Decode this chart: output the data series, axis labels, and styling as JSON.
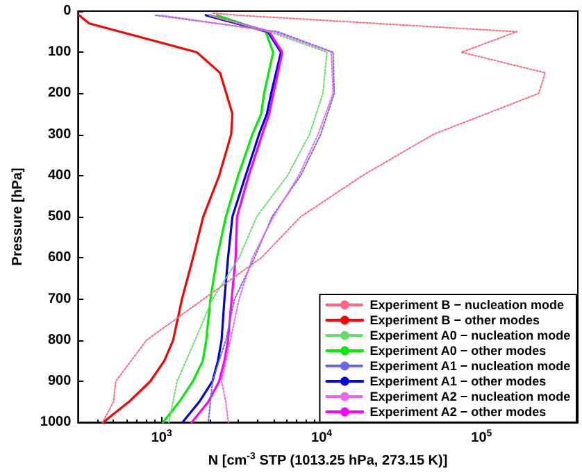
{
  "chart_data": {
    "type": "line",
    "xlabel": "N [cm$^{-3}$ STP (1013.25 hPa, 273.15 K)]",
    "ylabel": "Pressure [hPa]",
    "log": "x",
    "xlim": [
      300,
      400000
    ],
    "xticks": [
      {
        "value": 1000,
        "label": "10$^{3}$"
      },
      {
        "value": 10000,
        "label": "10$^{4}$"
      },
      {
        "value": 100000,
        "label": "10$^{5}$"
      }
    ],
    "ylim": [
      1000,
      0
    ],
    "yticks": [
      0,
      100,
      200,
      300,
      400,
      500,
      600,
      700,
      800,
      900,
      1000
    ],
    "grid": false,
    "legend": "bottom right",
    "marker": "none",
    "series": [
      {
        "name": "Experiment B − nucleation mode",
        "color": "#ff6680",
        "line_style": "dotted",
        "x": [
          2100,
          3000,
          166000,
          75000,
          250000,
          228000,
          49800,
          18000,
          7400,
          4190,
          1830,
          805,
          517,
          500,
          427
        ],
        "values": [
          5,
          10,
          50,
          100,
          150,
          200,
          300,
          400,
          500,
          600,
          700,
          800,
          900,
          950,
          1000
        ]
      },
      {
        "name": "Experiment B − other modes",
        "color": "#ff0000",
        "line_style": "solid",
        "x": [
          305,
          353,
          1660,
          2320,
          2770,
          2720,
          2290,
          1820,
          1570,
          1340,
          1180,
          1040,
          850,
          625,
          430
        ],
        "values": [
          10,
          30,
          100,
          150,
          250,
          300,
          400,
          500,
          600,
          700,
          800,
          850,
          900,
          950,
          1000
        ]
      },
      {
        "name": "Experiment A0 − nucleation mode",
        "color": "#66dd66",
        "line_style": "dotted",
        "x": [
          2000,
          4700,
          10800,
          10200,
          8400,
          6120,
          3930,
          3050,
          2080,
          1620,
          1250,
          1110
        ],
        "values": [
          10,
          50,
          100,
          200,
          300,
          400,
          500,
          600,
          700,
          800,
          900,
          1000
        ]
      },
      {
        "name": "Experiment A0 − other modes",
        "color": "#00ee00",
        "line_style": "solid",
        "x": [
          2220,
          4470,
          4980,
          4370,
          4190,
          3690,
          3010,
          2520,
          2220,
          2020,
          1900,
          1810,
          1570,
          1290,
          1020
        ],
        "values": [
          10,
          50,
          100,
          200,
          250,
          300,
          400,
          500,
          600,
          700,
          800,
          850,
          900,
          950,
          1000
        ]
      },
      {
        "name": "Experiment A1 − nucleation mode",
        "color": "#6666ee",
        "line_style": "dotted",
        "x": [
          915,
          5300,
          11800,
          12000,
          9870,
          7400,
          4900,
          3800,
          2860,
          2520,
          2080,
          1960
        ],
        "values": [
          10,
          50,
          100,
          200,
          300,
          400,
          500,
          600,
          700,
          800,
          900,
          1000
        ]
      },
      {
        "name": "Experiment A1 − other modes",
        "color": "#0000dd",
        "line_style": "solid",
        "x": [
          1890,
          4600,
          5570,
          4840,
          4550,
          4060,
          3350,
          2770,
          2600,
          2470,
          2370,
          2250,
          2080,
          1720,
          1350
        ],
        "values": [
          10,
          50,
          100,
          200,
          250,
          300,
          400,
          500,
          600,
          700,
          800,
          850,
          900,
          950,
          1000
        ]
      },
      {
        "name": "Experiment A2 − nucleation mode",
        "color": "#ee66ee",
        "line_style": "dotted",
        "x": [
          1000,
          5000,
          11500,
          11800,
          9500,
          7200,
          5000,
          3690,
          3050,
          2690,
          2370,
          2520,
          2610
        ],
        "values": [
          10,
          50,
          100,
          200,
          300,
          400,
          500,
          600,
          700,
          800,
          900,
          950,
          1000
        ]
      },
      {
        "name": "Experiment A2 − other modes",
        "color": "#ff00ff",
        "line_style": "solid",
        "x": [
          2000,
          4700,
          5680,
          5000,
          4700,
          4250,
          3500,
          2960,
          2900,
          2740,
          2600,
          2470,
          2290,
          1960,
          1540
        ],
        "values": [
          10,
          50,
          100,
          200,
          250,
          300,
          400,
          500,
          600,
          700,
          800,
          850,
          900,
          950,
          1000
        ]
      }
    ]
  }
}
